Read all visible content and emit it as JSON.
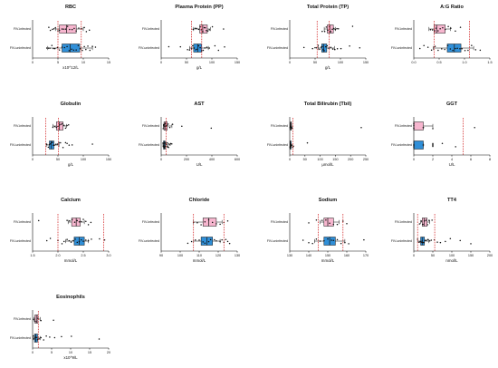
{
  "colors": {
    "infected": "#f7b6cf",
    "uninfected": "#2f8fd8",
    "reference": "#d0191a"
  },
  "groups": [
    "FIV-infected",
    "FIV-uninfected"
  ],
  "chart_data": [
    {
      "type": "box",
      "title": "RBC",
      "xlabel": "x10^12/L",
      "xlim": [
        0,
        15
      ],
      "ticks": [
        0,
        5,
        10,
        15
      ],
      "ref_lines": [
        5.0,
        9.6
      ],
      "box_series": [
        {
          "name": "FIV-infected",
          "min": 4.5,
          "q1": 5.3,
          "median": 6.7,
          "q3": 8.6,
          "max": 10.0,
          "points": [
            3.2,
            3.5,
            3.9,
            4.2,
            4.5,
            5.0,
            5.3,
            5.8,
            6.1,
            6.5,
            6.9,
            7.3,
            7.8,
            8.2,
            8.6,
            9.1,
            9.6,
            10.2,
            10.6,
            11.2
          ]
        },
        {
          "name": "FIV-uninfected",
          "min": 3.0,
          "q1": 5.8,
          "median": 7.4,
          "q3": 9.3,
          "max": 11.8,
          "points": [
            2.8,
            3.1,
            3.4,
            3.8,
            4.1,
            4.4,
            4.9,
            5.3,
            5.8,
            6.3,
            6.8,
            7.2,
            7.7,
            8.1,
            8.6,
            9.0,
            9.4,
            9.8,
            10.2,
            10.5,
            10.9,
            11.3,
            11.8,
            12.4
          ]
        }
      ]
    },
    {
      "type": "box",
      "title": "Plasma Protein (PP)",
      "xlabel": "g/L",
      "xlim": [
        0,
        150
      ],
      "ticks": [
        0,
        50,
        100,
        150
      ],
      "ref_lines": [
        60,
        80
      ],
      "box_series": [
        {
          "name": "FIV-infected",
          "min": 64,
          "q1": 76,
          "median": 82,
          "q3": 91,
          "max": 97,
          "points": [
            63,
            67,
            70,
            74,
            77,
            79,
            82,
            85,
            87,
            89,
            92,
            95,
            101,
            123
          ]
        },
        {
          "name": "FIV-uninfected",
          "min": 56,
          "q1": 64,
          "median": 72,
          "q3": 80,
          "max": 93,
          "points": [
            15,
            38,
            52,
            56,
            60,
            62,
            65,
            68,
            71,
            74,
            77,
            80,
            83,
            86,
            90,
            95,
            106,
            113,
            125
          ]
        }
      ]
    },
    {
      "type": "box",
      "title": "Total Protein (TP)",
      "xlabel": "g/L",
      "xlim": [
        0,
        150
      ],
      "ticks": [
        0,
        50,
        100,
        150
      ],
      "ref_lines": [
        54,
        78
      ],
      "box_series": [
        {
          "name": "FIV-infected",
          "min": 68,
          "q1": 74,
          "median": 79,
          "q3": 86,
          "max": 90,
          "points": [
            64,
            69,
            72,
            75,
            78,
            81,
            84,
            87,
            90,
            93,
            96,
            124
          ]
        },
        {
          "name": "FIV-uninfected",
          "min": 56,
          "q1": 63,
          "median": 67,
          "q3": 73,
          "max": 88,
          "points": [
            28,
            45,
            50,
            53,
            56,
            59,
            62,
            64,
            66,
            68,
            71,
            74,
            77,
            81,
            85,
            89,
            94,
            101,
            118,
            138
          ]
        }
      ]
    },
    {
      "type": "box",
      "title": "A:G Ratio",
      "xlabel": "",
      "xlim": [
        0,
        1.5
      ],
      "ticks": [
        0.0,
        0.5,
        1.0,
        1.5
      ],
      "ref_lines": [
        0.4,
        1.1
      ],
      "box_series": [
        {
          "name": "FIV-infected",
          "min": 0.3,
          "q1": 0.4,
          "median": 0.45,
          "q3": 0.62,
          "max": 0.72,
          "points": [
            0.33,
            0.37,
            0.41,
            0.44,
            0.48,
            0.52,
            0.57,
            0.62,
            0.68,
            0.73,
            0.82,
            0.92
          ]
        },
        {
          "name": "FIV-uninfected",
          "min": 0.38,
          "q1": 0.66,
          "median": 0.8,
          "q3": 0.93,
          "max": 1.18,
          "points": [
            0.12,
            0.2,
            0.28,
            0.35,
            0.42,
            0.48,
            0.55,
            0.61,
            0.67,
            0.72,
            0.77,
            0.82,
            0.86,
            0.91,
            0.95,
            1.01,
            1.07,
            1.14,
            1.22,
            1.31
          ]
        }
      ]
    },
    {
      "type": "box",
      "title": "Globulin",
      "xlabel": "g/L",
      "xlim": [
        0,
        150
      ],
      "ticks": [
        0,
        50,
        100,
        150
      ],
      "ref_lines": [
        26,
        51
      ],
      "box_series": [
        {
          "name": "FIV-infected",
          "min": 40,
          "q1": 47,
          "median": 53,
          "q3": 60,
          "max": 67,
          "points": [
            40,
            44,
            47,
            50,
            53,
            56,
            59,
            62,
            65,
            68,
            71
          ]
        },
        {
          "name": "FIV-uninfected",
          "min": 27,
          "q1": 33,
          "median": 37,
          "q3": 42,
          "max": 52,
          "points": [
            28,
            31,
            33,
            35,
            37,
            39,
            41,
            43,
            46,
            49,
            52,
            55,
            60,
            65,
            68,
            72,
            78,
            118
          ]
        }
      ]
    },
    {
      "type": "box",
      "title": "AST",
      "xlabel": "U/L",
      "xlim": [
        0,
        600
      ],
      "ticks": [
        0,
        200,
        400,
        600
      ],
      "ref_lines": [
        40
      ],
      "box_series": [
        {
          "name": "FIV-infected",
          "min": 16,
          "q1": 22,
          "median": 30,
          "q3": 48,
          "max": 85,
          "points": [
            16,
            20,
            24,
            28,
            32,
            38,
            45,
            55,
            68,
            90,
            163,
            395
          ]
        },
        {
          "name": "FIV-uninfected",
          "min": 14,
          "q1": 18,
          "median": 24,
          "q3": 32,
          "max": 52,
          "points": [
            14,
            17,
            19,
            21,
            23,
            25,
            27,
            29,
            31,
            34,
            37,
            40,
            44,
            48,
            52,
            58,
            63,
            70,
            76,
            84
          ]
        }
      ]
    },
    {
      "type": "box",
      "title": "Total Bilirubin (Tbil)",
      "xlabel": "μmol/L",
      "xlim": [
        0,
        250
      ],
      "ticks": [
        0,
        50,
        100,
        150,
        200,
        250
      ],
      "ref_lines": [
        10
      ],
      "box_series": [
        {
          "name": "FIV-infected",
          "min": 1,
          "q1": 2,
          "median": 3,
          "q3": 4,
          "max": 6,
          "points": [
            1,
            2,
            2,
            3,
            3,
            4,
            5,
            6,
            8,
            235
          ]
        },
        {
          "name": "FIV-uninfected",
          "min": 1,
          "q1": 1,
          "median": 2,
          "q3": 3,
          "max": 5,
          "points": [
            1,
            1,
            2,
            2,
            3,
            3,
            4,
            5,
            7,
            10,
            12,
            58
          ]
        }
      ]
    },
    {
      "type": "box",
      "title": "GGT",
      "xlabel": "U/L",
      "xlim": [
        0,
        8
      ],
      "ticks": [
        0,
        2,
        4,
        6,
        8
      ],
      "ref_lines": [
        5.2
      ],
      "box_series": [
        {
          "name": "FIV-infected",
          "min": 0,
          "q1": 0,
          "median": 0,
          "q3": 1,
          "max": 2,
          "points": [
            0,
            0,
            0,
            1,
            1,
            2,
            6.4
          ]
        },
        {
          "name": "FIV-uninfected",
          "min": 0,
          "q1": 0,
          "median": 0,
          "q3": 1,
          "max": 1,
          "points": [
            0,
            0,
            0,
            1,
            1,
            2,
            2,
            2,
            2,
            3,
            4.4
          ]
        }
      ]
    },
    {
      "type": "box",
      "title": "Calcium",
      "xlabel": "mmol/L",
      "xlim": [
        1.5,
        3.0
      ],
      "ticks": [
        1.5,
        2.0,
        2.5,
        3.0
      ],
      "ref_lines": [
        2.0,
        2.9
      ],
      "box_series": [
        {
          "name": "FIV-infected",
          "min": 2.2,
          "q1": 2.27,
          "median": 2.36,
          "q3": 2.44,
          "max": 2.52,
          "points": [
            1.62,
            2.18,
            2.23,
            2.28,
            2.33,
            2.38,
            2.42,
            2.46,
            2.5,
            2.55,
            2.6,
            2.65
          ]
        },
        {
          "name": "FIV-uninfected",
          "min": 2.15,
          "q1": 2.32,
          "median": 2.42,
          "q3": 2.52,
          "max": 2.6,
          "points": [
            1.78,
            1.85,
            2.0,
            2.08,
            2.12,
            2.18,
            2.22,
            2.26,
            2.3,
            2.34,
            2.38,
            2.42,
            2.46,
            2.5,
            2.55,
            2.6,
            2.66,
            2.82,
            2.92
          ]
        }
      ]
    },
    {
      "type": "box",
      "title": "Chloride",
      "xlabel": "mmol/L",
      "xlim": [
        90,
        130
      ],
      "ticks": [
        90,
        100,
        110,
        120,
        130
      ],
      "ref_lines": [
        107,
        123
      ],
      "box_series": [
        {
          "name": "FIV-infected",
          "min": 107,
          "q1": 112,
          "median": 115,
          "q3": 119,
          "max": 122,
          "points": [
            107,
            109,
            111,
            113,
            115,
            117,
            119,
            121,
            123,
            125
          ]
        },
        {
          "name": "FIV-uninfected",
          "min": 107,
          "q1": 111,
          "median": 114,
          "q3": 117,
          "max": 121,
          "points": [
            104,
            106,
            108,
            110,
            112,
            113,
            115,
            116,
            118,
            119,
            121,
            122,
            123,
            124,
            125,
            126
          ]
        }
      ]
    },
    {
      "type": "box",
      "title": "Sodium",
      "xlabel": "mmol/L",
      "xlim": [
        130,
        170
      ],
      "ticks": [
        130,
        140,
        150,
        160,
        170
      ],
      "ref_lines": [
        145,
        158
      ],
      "box_series": [
        {
          "name": "FIV-infected",
          "min": 146,
          "q1": 148,
          "median": 150,
          "q3": 153,
          "max": 156,
          "points": [
            140,
            144,
            147,
            149,
            151,
            153,
            155,
            158,
            160
          ]
        },
        {
          "name": "FIV-uninfected",
          "min": 143,
          "q1": 148,
          "median": 151,
          "q3": 154,
          "max": 159,
          "points": [
            137,
            140,
            142,
            144,
            146,
            148,
            150,
            152,
            153,
            155,
            157,
            159,
            161,
            169
          ]
        }
      ]
    },
    {
      "type": "box",
      "title": "TT4",
      "xlabel": "nmol/L",
      "xlim": [
        0,
        200
      ],
      "ticks": [
        0,
        50,
        100,
        150,
        200
      ],
      "ref_lines": [
        10,
        55
      ],
      "box_series": [
        {
          "name": "FIV-infected",
          "min": 18,
          "q1": 22,
          "median": 27,
          "q3": 35,
          "max": 42,
          "points": [
            15,
            20,
            24,
            28,
            32,
            36,
            40,
            48
          ]
        },
        {
          "name": "FIV-uninfected",
          "min": 10,
          "q1": 18,
          "median": 22,
          "q3": 28,
          "max": 40,
          "points": [
            10,
            14,
            17,
            20,
            22,
            24,
            27,
            30,
            33,
            37,
            42,
            46,
            54,
            62,
            70,
            83,
            96,
            122,
            150
          ]
        }
      ]
    },
    {
      "type": "box",
      "title": "Eosinophils",
      "xlabel": "x10^9/L",
      "xlim": [
        0,
        20
      ],
      "ticks": [
        0,
        5,
        10,
        15,
        20
      ],
      "ref_lines": [
        1.5
      ],
      "box_series": [
        {
          "name": "FIV-infected",
          "min": 0.3,
          "q1": 0.6,
          "median": 1.0,
          "q3": 1.4,
          "max": 2.0,
          "points": [
            0.3,
            0.6,
            1.0,
            1.4,
            2.2,
            5.5
          ]
        },
        {
          "name": "FIV-uninfected",
          "min": 0.2,
          "q1": 0.5,
          "median": 0.8,
          "q3": 1.3,
          "max": 2.0,
          "points": [
            0.2,
            0.4,
            0.7,
            1.0,
            1.3,
            1.7,
            2.2,
            2.9,
            3.6,
            4.5,
            5.8,
            7.6,
            10.2,
            17.5
          ]
        }
      ]
    }
  ]
}
